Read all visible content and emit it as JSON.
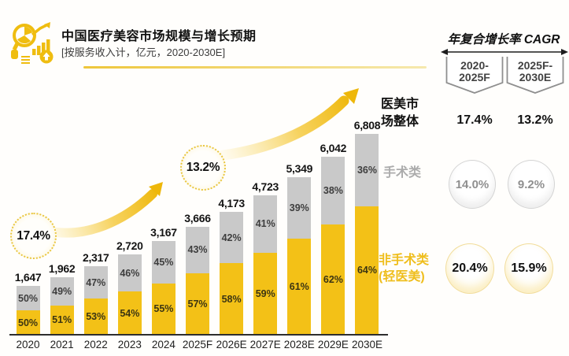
{
  "header": {
    "title": "中国医疗美容市场规模与增长预期",
    "subtitle": "[按服务收入计，亿元，2020-2030E]",
    "icon": "market-analytics-icon"
  },
  "chart_data": {
    "type": "bar",
    "stacked": true,
    "title": "中国医疗美容市场规模与增长预期",
    "unit": "亿元",
    "grid": false,
    "categories": [
      "2020",
      "2021",
      "2022",
      "2023",
      "2024",
      "2025F",
      "2026E",
      "2027E",
      "2028E",
      "2029E",
      "2030E"
    ],
    "totals": [
      1647,
      1962,
      2317,
      2720,
      3167,
      3666,
      4173,
      4723,
      5349,
      6042,
      6808
    ],
    "total_labels": [
      "1,647",
      "1,962",
      "2,317",
      "2,720",
      "3,167",
      "3,666",
      "4,173",
      "4,723",
      "5,349",
      "6,042",
      "6,808"
    ],
    "series": [
      {
        "name": "手术类",
        "position": "top",
        "color": "#C9C9C9",
        "pct": [
          50,
          49,
          47,
          46,
          45,
          43,
          42,
          41,
          39,
          38,
          36
        ]
      },
      {
        "name": "非手术类(轻医美)",
        "position": "bottom",
        "color": "#F3C117",
        "pct": [
          50,
          51,
          53,
          54,
          55,
          57,
          58,
          59,
          61,
          62,
          64
        ]
      }
    ],
    "annotations": [
      {
        "text": "17.4%",
        "meaning": "CAGR 2020-2025F"
      },
      {
        "text": "13.2%",
        "meaning": "CAGR 2025F-2030E"
      }
    ],
    "legend": {
      "total_line1": "医美市",
      "total_line2": "场整体",
      "surgical": "手术类",
      "non_surgical_line1": "非手术类",
      "non_surgical_line2": "(轻医美)"
    }
  },
  "cagr_panel": {
    "title": "年复合增长率 CAGR",
    "periods": [
      {
        "line1": "2020-",
        "line2": "2025F"
      },
      {
        "line1": "2025F-",
        "line2": "2030E"
      }
    ],
    "overall": [
      "17.4%",
      "13.2%"
    ],
    "surgical": [
      "14.0%",
      "9.2%"
    ],
    "non_surgical": [
      "20.4%",
      "15.9%"
    ]
  },
  "colors": {
    "bar_yellow": "#F3C117",
    "bar_gray": "#C9C9C9",
    "gold_text": "#EFBE1D",
    "gray_text": "#ACACAC",
    "arrow_gold": "#EEB70A"
  }
}
